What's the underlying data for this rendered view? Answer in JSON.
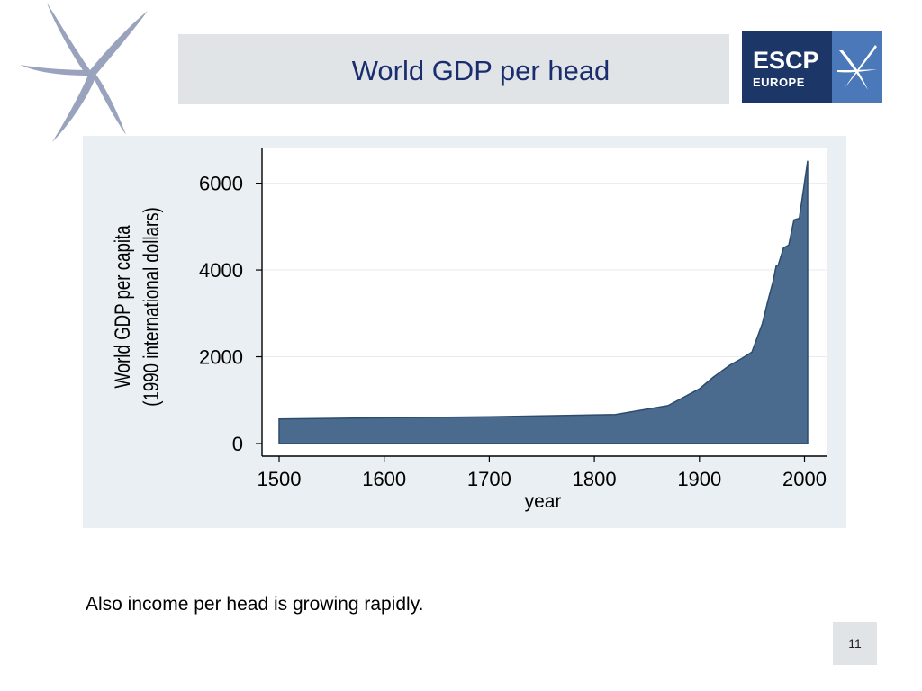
{
  "slide": {
    "title": "World GDP per head",
    "caption": "Also income per head is growing rapidly.",
    "page_number": "11",
    "title_color": "#1a2d6e",
    "title_bar_color": "#e1e4e6"
  },
  "logo": {
    "line1": "ESCP",
    "line2": "EUROPE",
    "brand_color": "#1c3668",
    "accent_color": "#4a78b8",
    "icon": "x-star-icon"
  },
  "decoration": {
    "icon": "star-propeller-icon",
    "color": "#9aa3bd"
  },
  "chart_data": {
    "type": "area",
    "title": "",
    "xlabel": "year",
    "ylabel": [
      "World GDP per capita",
      "(1990 international dollars)"
    ],
    "xlim": [
      1500,
      2003
    ],
    "ylim": [
      0,
      6800
    ],
    "xticks": [
      "1500",
      "1600",
      "1700",
      "1800",
      "1900",
      "2000"
    ],
    "yticks": [
      "0",
      "2000",
      "4000",
      "6000"
    ],
    "grid": true,
    "legend": "none",
    "fill_color": "#4a6b8e",
    "line_color": "#2c4c6e",
    "x": [
      1500,
      1600,
      1700,
      1820,
      1870,
      1900,
      1913,
      1929,
      1940,
      1950,
      1955,
      1960,
      1965,
      1970,
      1973,
      1975,
      1980,
      1985,
      1990,
      1995,
      2000,
      2003
    ],
    "y": [
      565,
      593,
      615,
      667,
      873,
      1260,
      1525,
      1806,
      1958,
      2111,
      2446,
      2773,
      3279,
      3729,
      4091,
      4113,
      4512,
      4573,
      5157,
      5192,
      6012,
      6516
    ]
  }
}
